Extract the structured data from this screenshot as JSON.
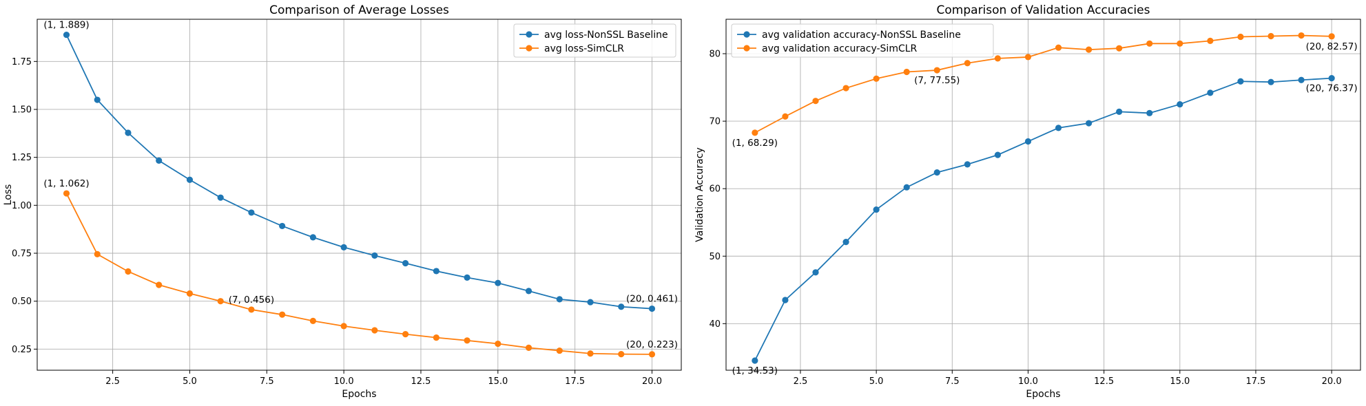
{
  "colors": {
    "nonssl": "#1f77b4",
    "simclr": "#ff7f0e",
    "grid": "#b0b0b0"
  },
  "chart_data": [
    {
      "type": "line",
      "title": "Comparison of Average Losses",
      "xlabel": "Epochs",
      "ylabel": "Loss",
      "xlim": [
        0.05,
        20.95
      ],
      "ylim": [
        0.14,
        1.97
      ],
      "xticks": [
        2.5,
        5.0,
        7.5,
        10.0,
        12.5,
        15.0,
        17.5,
        20.0
      ],
      "xtick_labels": [
        "2.5",
        "5.0",
        "7.5",
        "10.0",
        "12.5",
        "15.0",
        "17.5",
        "20.0"
      ],
      "yticks": [
        0.25,
        0.5,
        0.75,
        1.0,
        1.25,
        1.5,
        1.75
      ],
      "ytick_labels": [
        "0.25",
        "0.50",
        "0.75",
        "1.00",
        "1.25",
        "1.50",
        "1.75"
      ],
      "grid": true,
      "legend_position": "upper-right",
      "x": [
        1,
        2,
        3,
        4,
        5,
        6,
        7,
        8,
        9,
        10,
        11,
        12,
        13,
        14,
        15,
        16,
        17,
        18,
        19,
        20
      ],
      "series": [
        {
          "name": "avg loss-NonSSL Baseline",
          "color": "#1f77b4",
          "values": [
            1.889,
            1.55,
            1.378,
            1.233,
            1.133,
            1.04,
            0.962,
            0.892,
            0.833,
            0.781,
            0.738,
            0.698,
            0.657,
            0.623,
            0.595,
            0.553,
            0.51,
            0.495,
            0.471,
            0.461
          ]
        },
        {
          "name": "avg loss-SimCLR",
          "color": "#ff7f0e",
          "values": [
            1.062,
            0.745,
            0.655,
            0.585,
            0.54,
            0.5,
            0.456,
            0.43,
            0.397,
            0.37,
            0.348,
            0.328,
            0.31,
            0.295,
            0.278,
            0.257,
            0.242,
            0.227,
            0.224,
            0.223
          ]
        }
      ],
      "annotations": [
        {
          "text": "(1, 1.889)",
          "x": 1,
          "y": 1.889,
          "place": "above"
        },
        {
          "text": "(20, 0.461)",
          "x": 20,
          "y": 0.461,
          "place": "above"
        },
        {
          "text": "(1, 1.062)",
          "x": 1,
          "y": 1.062,
          "place": "above"
        },
        {
          "text": "(7, 0.456)",
          "x": 7,
          "y": 0.456,
          "place": "above"
        },
        {
          "text": "(20, 0.223)",
          "x": 20,
          "y": 0.223,
          "place": "above"
        }
      ]
    },
    {
      "type": "line",
      "title": "Comparison of Validation Accuracies",
      "xlabel": "Epochs",
      "ylabel": "Validation Accuracy",
      "xlim": [
        0.05,
        20.95
      ],
      "ylim": [
        33.1,
        85.1
      ],
      "xticks": [
        2.5,
        5.0,
        7.5,
        10.0,
        12.5,
        15.0,
        17.5,
        20.0
      ],
      "xtick_labels": [
        "2.5",
        "5.0",
        "7.5",
        "10.0",
        "12.5",
        "15.0",
        "17.5",
        "20.0"
      ],
      "yticks": [
        40,
        50,
        60,
        70,
        80
      ],
      "ytick_labels": [
        "40",
        "50",
        "60",
        "70",
        "80"
      ],
      "grid": true,
      "legend_position": "upper-left",
      "x": [
        1,
        2,
        3,
        4,
        5,
        6,
        7,
        8,
        9,
        10,
        11,
        12,
        13,
        14,
        15,
        16,
        17,
        18,
        19,
        20
      ],
      "series": [
        {
          "name": "avg validation accuracy-NonSSL Baseline",
          "color": "#1f77b4",
          "values": [
            34.53,
            43.5,
            47.6,
            52.1,
            56.9,
            60.2,
            62.4,
            63.6,
            65.0,
            67.0,
            69.0,
            69.7,
            71.4,
            71.2,
            72.5,
            74.2,
            75.9,
            75.8,
            76.1,
            76.37
          ]
        },
        {
          "name": "avg validation accuracy-SimCLR",
          "color": "#ff7f0e",
          "values": [
            68.29,
            70.7,
            73.0,
            74.9,
            76.3,
            77.3,
            77.55,
            78.6,
            79.3,
            79.5,
            80.9,
            80.6,
            80.8,
            81.5,
            81.5,
            81.9,
            82.5,
            82.6,
            82.7,
            82.57
          ]
        }
      ],
      "annotations": [
        {
          "text": "(1, 68.29)",
          "x": 1,
          "y": 68.29,
          "place": "below"
        },
        {
          "text": "(7, 77.55)",
          "x": 7,
          "y": 77.55,
          "place": "below"
        },
        {
          "text": "(20, 82.57)",
          "x": 20,
          "y": 82.57,
          "place": "below"
        },
        {
          "text": "(20, 76.37)",
          "x": 20,
          "y": 76.37,
          "place": "below"
        },
        {
          "text": "(1, 34.53)",
          "x": 1,
          "y": 34.53,
          "place": "below"
        }
      ]
    }
  ]
}
